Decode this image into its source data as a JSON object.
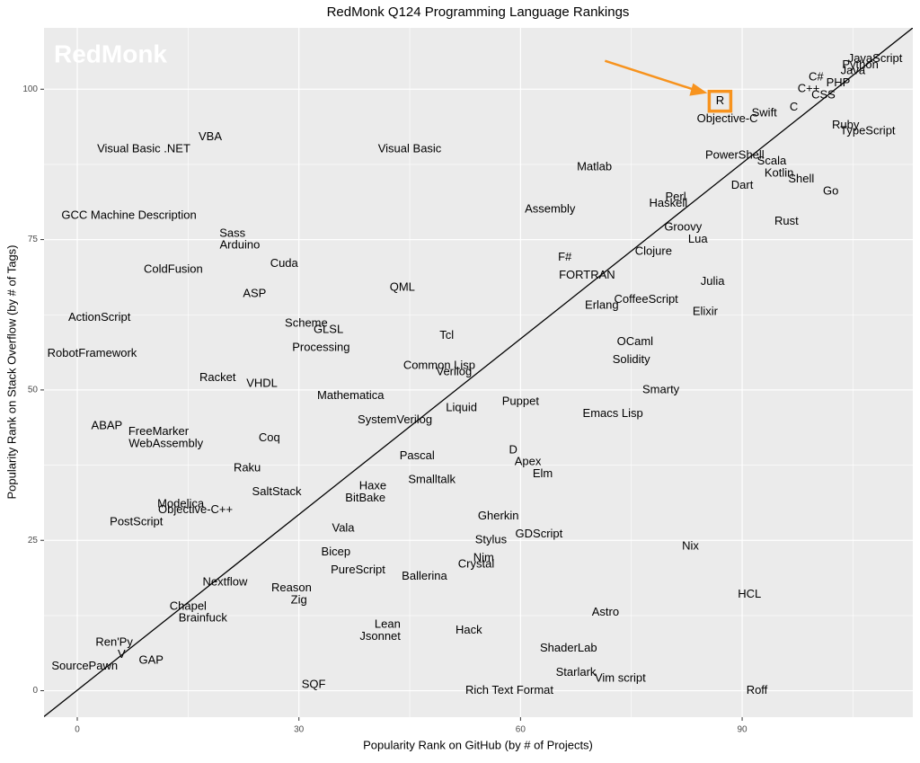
{
  "chart_data": {
    "type": "text-scatter",
    "title": "RedMonk Q124 Programming Language Rankings",
    "xlabel": "Popularity Rank on GitHub (by # of Projects)",
    "ylabel": "Popularity Rank on Stack Overflow (by # of Tags)",
    "watermark": "RedMonk",
    "xlim": [
      -4.5,
      113.1
    ],
    "ylim": [
      -4.4,
      110.2
    ],
    "xticks": [
      0,
      30,
      60,
      90
    ],
    "yticks": [
      0,
      25,
      50,
      75,
      100
    ],
    "minor_xticks": [
      15,
      45,
      75,
      105
    ],
    "minor_yticks": [
      12.5,
      37.5,
      62.5,
      87.5
    ],
    "grid": true,
    "trend_line": {
      "x": [
        -4.5,
        113.1
      ],
      "y": [
        -4.3,
        110.2
      ],
      "color": "#000000"
    },
    "highlight": 9,
    "highlight_color": "#f7931e",
    "labels": [
      "JavaScript",
      "Python",
      "Java",
      "C#",
      "PHP",
      "C++",
      "CSS",
      "C",
      "Swift",
      "R",
      "Objective-C",
      "Ruby",
      "TypeScript",
      "PowerShell",
      "Scala",
      "Kotlin",
      "Shell",
      "Dart",
      "Go",
      "Rust",
      "Perl",
      "Haskell",
      "Groovy",
      "Lua",
      "Clojure",
      "Julia",
      "Elixir",
      "CoffeeScript",
      "Erlang",
      "F#",
      "FORTRAN",
      "Assembly",
      "Matlab",
      "Visual Basic",
      "VBA",
      "Visual Basic .NET",
      "GCC Machine Description",
      "Sass",
      "Arduino",
      "Cuda",
      "ColdFusion",
      "ASP",
      "QML",
      "ActionScript",
      "Scheme",
      "GLSL",
      "Processing",
      "Tcl",
      "RobotFramework",
      "OCaml",
      "Solidity",
      "Common Lisp",
      "Verilog",
      "Racket",
      "VHDL",
      "Smarty",
      "Mathematica",
      "Puppet",
      "Liquid",
      "Emacs Lisp",
      "SystemVerilog",
      "ABAP",
      "FreeMarker",
      "WebAssembly",
      "Coq",
      "D",
      "Pascal",
      "Apex",
      "Elm",
      "Raku",
      "Smalltalk",
      "Haxe",
      "SaltStack",
      "BitBake",
      "Modelica",
      "Objective-C++",
      "Gherkin",
      "PostScript",
      "Vala",
      "GDScript",
      "Stylus",
      "Nix",
      "Bicep",
      "Nim",
      "Crystal",
      "PureScript",
      "Ballerina",
      "Nextflow",
      "Reason",
      "HCL",
      "Zig",
      "Chapel",
      "Astro",
      "Brainfuck",
      "Lean",
      "Hack",
      "Jsonnet",
      "Ren'Py",
      "V",
      "ShaderLab",
      "GAP",
      "SourcePawn",
      "Starlark",
      "Vim script",
      "SQF",
      "Rich Text Format",
      "Roff"
    ],
    "x": [
      108,
      106,
      105,
      100,
      103,
      99,
      101,
      97,
      93,
      87,
      88,
      104,
      107,
      89,
      94,
      95,
      98,
      90,
      102,
      96,
      81,
      80,
      82,
      84,
      78,
      86,
      85,
      77,
      71,
      66,
      69,
      64,
      70,
      45,
      18,
      9,
      7,
      21,
      22,
      28,
      13,
      24,
      44,
      3,
      31,
      34,
      33,
      50,
      2,
      75.5,
      75,
      49,
      51,
      19,
      25,
      79,
      37,
      60,
      52,
      72.5,
      43,
      4,
      11,
      12,
      26,
      59,
      46,
      61,
      63,
      23,
      48,
      40,
      27,
      39,
      14,
      16,
      57,
      8,
      36,
      62.5,
      56,
      83,
      35,
      55,
      54,
      38,
      47,
      20,
      29,
      91,
      30,
      15,
      71.5,
      17,
      42,
      53,
      41,
      5,
      6,
      66.5,
      10,
      1,
      67.5,
      73.5,
      32,
      58.5,
      92
    ],
    "values": [
      105,
      104,
      103,
      102,
      101,
      100,
      99,
      97,
      96,
      98,
      95,
      94,
      93,
      89,
      88,
      86,
      85,
      84,
      83,
      78,
      82,
      81,
      77,
      75,
      73,
      68,
      63,
      65,
      64,
      72,
      69,
      80,
      87,
      90,
      92,
      90,
      79,
      76,
      74,
      71,
      70,
      66,
      67,
      62,
      61,
      60,
      57,
      59,
      56,
      58,
      55,
      54,
      53,
      52,
      51,
      50,
      49,
      48,
      47,
      46,
      45,
      44,
      43,
      41,
      42,
      40,
      39,
      38,
      36,
      37,
      35,
      34,
      33,
      32,
      31,
      30,
      29,
      28,
      27,
      26,
      25,
      24,
      23,
      22,
      21,
      20,
      19,
      18,
      17,
      16,
      15,
      14,
      13,
      12,
      11,
      10,
      9,
      8,
      6,
      7,
      5,
      4,
      3,
      2,
      1,
      0,
      0
    ]
  }
}
